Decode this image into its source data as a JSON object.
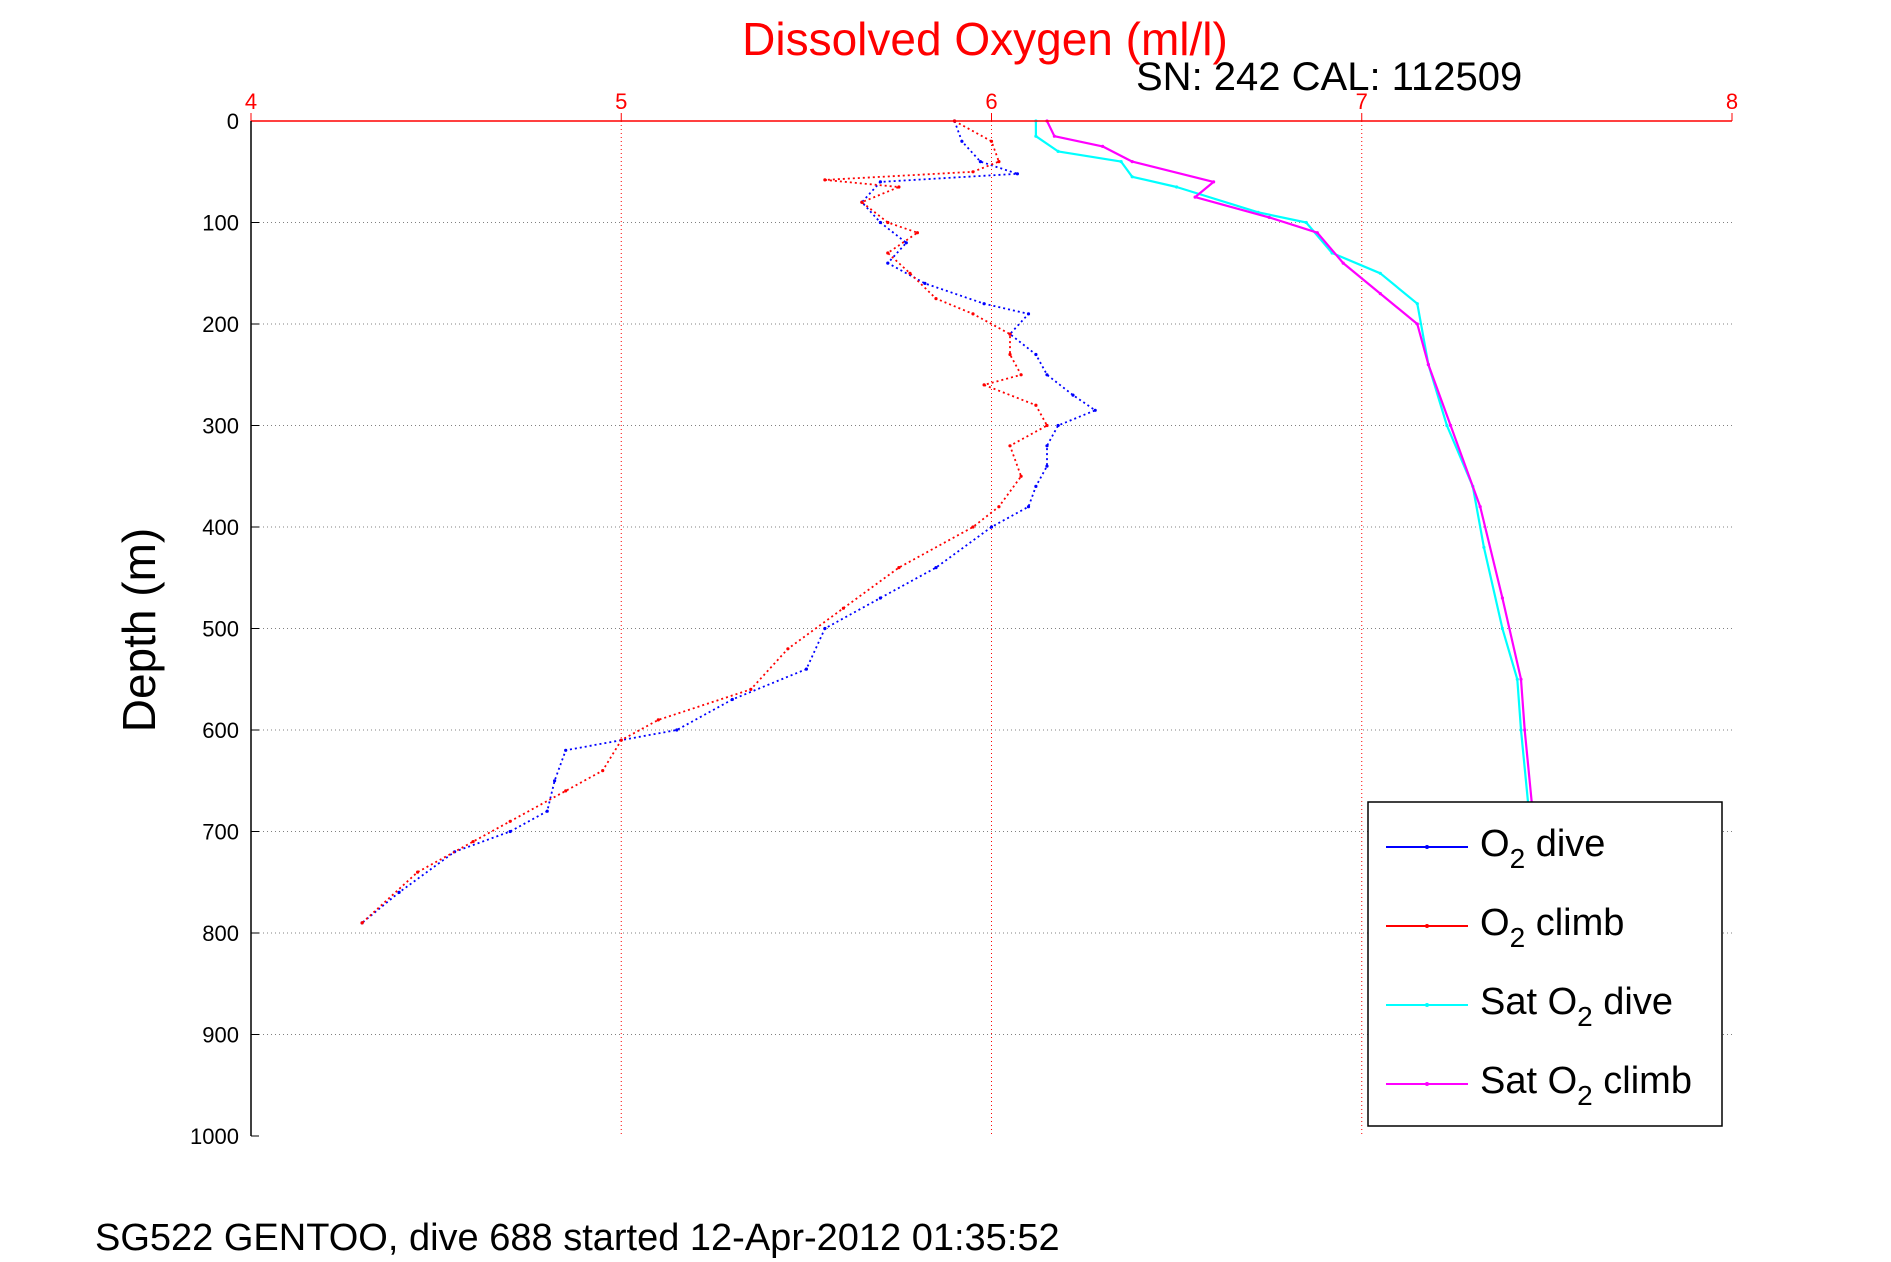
{
  "chart_data": {
    "type": "line",
    "title": "Dissolved Oxygen (ml/l)",
    "subtitle": "SN: 242  CAL: 112509",
    "ylabel": "Depth (m)",
    "footer": "SG522 GENTOO, dive 688 started 12-Apr-2012 01:35:52",
    "xlim": [
      4,
      8
    ],
    "ylim": [
      0,
      1000
    ],
    "y_reversed": true,
    "x_axis_position": "top",
    "x_ticks": [
      "4",
      "5",
      "6",
      "7",
      "8"
    ],
    "y_ticks": [
      "0",
      "100",
      "200",
      "300",
      "400",
      "500",
      "600",
      "700",
      "800",
      "900",
      "1000"
    ],
    "grid": true,
    "legend_position": "bottom-right",
    "colors": {
      "o2_dive": "#0000ff",
      "o2_climb": "#ff0000",
      "sat_dive": "#00ffff",
      "sat_climb": "#ff00ff",
      "x_axis": "#ff0000",
      "grid": "#808080"
    },
    "series": [
      {
        "name": "O2 dive",
        "legend": {
          "pre": "O",
          "sub": "2",
          "post": " dive"
        },
        "color": "#0000ff",
        "points": [
          [
            5.9,
            0
          ],
          [
            5.92,
            20
          ],
          [
            5.97,
            40
          ],
          [
            6.07,
            52
          ],
          [
            5.7,
            60
          ],
          [
            5.65,
            80
          ],
          [
            5.7,
            100
          ],
          [
            5.77,
            120
          ],
          [
            5.72,
            140
          ],
          [
            5.82,
            160
          ],
          [
            5.98,
            180
          ],
          [
            6.1,
            190
          ],
          [
            6.05,
            210
          ],
          [
            6.12,
            230
          ],
          [
            6.15,
            250
          ],
          [
            6.22,
            270
          ],
          [
            6.28,
            285
          ],
          [
            6.18,
            300
          ],
          [
            6.15,
            320
          ],
          [
            6.15,
            340
          ],
          [
            6.12,
            360
          ],
          [
            6.1,
            380
          ],
          [
            6.0,
            400
          ],
          [
            5.85,
            440
          ],
          [
            5.7,
            470
          ],
          [
            5.55,
            500
          ],
          [
            5.5,
            540
          ],
          [
            5.3,
            570
          ],
          [
            5.15,
            600
          ],
          [
            4.85,
            620
          ],
          [
            4.82,
            650
          ],
          [
            4.8,
            680
          ],
          [
            4.7,
            700
          ],
          [
            4.55,
            720
          ],
          [
            4.4,
            760
          ],
          [
            4.3,
            790
          ]
        ]
      },
      {
        "name": "O2 climb",
        "legend": {
          "pre": "O",
          "sub": "2",
          "post": " climb"
        },
        "color": "#ff0000",
        "points": [
          [
            5.9,
            0
          ],
          [
            6.0,
            20
          ],
          [
            6.02,
            40
          ],
          [
            5.95,
            50
          ],
          [
            5.55,
            58
          ],
          [
            5.75,
            65
          ],
          [
            5.65,
            80
          ],
          [
            5.72,
            100
          ],
          [
            5.8,
            110
          ],
          [
            5.72,
            130
          ],
          [
            5.78,
            150
          ],
          [
            5.85,
            175
          ],
          [
            5.95,
            190
          ],
          [
            6.05,
            210
          ],
          [
            6.05,
            230
          ],
          [
            6.08,
            250
          ],
          [
            5.98,
            260
          ],
          [
            6.12,
            280
          ],
          [
            6.15,
            300
          ],
          [
            6.05,
            320
          ],
          [
            6.08,
            350
          ],
          [
            6.02,
            380
          ],
          [
            5.95,
            400
          ],
          [
            5.75,
            440
          ],
          [
            5.6,
            480
          ],
          [
            5.45,
            520
          ],
          [
            5.35,
            560
          ],
          [
            5.1,
            590
          ],
          [
            5.0,
            610
          ],
          [
            4.95,
            640
          ],
          [
            4.85,
            660
          ],
          [
            4.7,
            690
          ],
          [
            4.6,
            710
          ],
          [
            4.45,
            740
          ],
          [
            4.3,
            790
          ]
        ]
      },
      {
        "name": "Sat O2 dive",
        "legend": {
          "pre": "Sat O",
          "sub": "2",
          "post": " dive"
        },
        "color": "#00ffff",
        "points": [
          [
            6.12,
            0
          ],
          [
            6.12,
            15
          ],
          [
            6.18,
            30
          ],
          [
            6.35,
            40
          ],
          [
            6.38,
            55
          ],
          [
            6.5,
            65
          ],
          [
            6.72,
            90
          ],
          [
            6.85,
            100
          ],
          [
            6.92,
            130
          ],
          [
            7.05,
            150
          ],
          [
            7.15,
            180
          ],
          [
            7.18,
            240
          ],
          [
            7.23,
            300
          ],
          [
            7.3,
            360
          ],
          [
            7.33,
            420
          ],
          [
            7.38,
            500
          ],
          [
            7.42,
            550
          ],
          [
            7.43,
            600
          ],
          [
            7.45,
            675
          ]
        ]
      },
      {
        "name": "Sat O2 climb",
        "legend": {
          "pre": "Sat O",
          "sub": "2",
          "post": " climb"
        },
        "color": "#ff00ff",
        "points": [
          [
            6.15,
            0
          ],
          [
            6.17,
            15
          ],
          [
            6.3,
            25
          ],
          [
            6.38,
            40
          ],
          [
            6.6,
            60
          ],
          [
            6.55,
            75
          ],
          [
            6.75,
            95
          ],
          [
            6.88,
            110
          ],
          [
            6.95,
            140
          ],
          [
            7.05,
            170
          ],
          [
            7.15,
            200
          ],
          [
            7.18,
            240
          ],
          [
            7.24,
            300
          ],
          [
            7.32,
            380
          ],
          [
            7.38,
            470
          ],
          [
            7.43,
            550
          ],
          [
            7.44,
            600
          ],
          [
            7.46,
            675
          ]
        ]
      }
    ]
  }
}
